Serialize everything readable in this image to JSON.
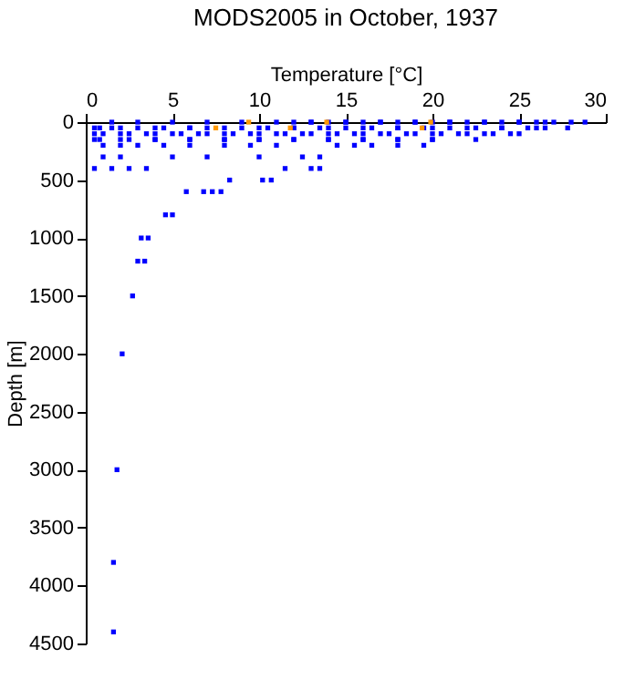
{
  "chart_data": {
    "type": "scatter",
    "title": "MODS2005 in October, 1937",
    "xlabel": "Temperature [°C]",
    "ylabel": "Depth [m]",
    "xlim": [
      0,
      30
    ],
    "xticks": [
      0,
      5,
      10,
      15,
      20,
      25,
      30
    ],
    "ylim": [
      4500,
      0
    ],
    "yticks": [
      0,
      500,
      1000,
      1500,
      2000,
      2500,
      3000,
      3500,
      4000,
      4500
    ],
    "grid": false,
    "marker": "square",
    "series": [
      {
        "color": "#0000ff",
        "x": [
          12,
          13,
          14,
          15,
          16,
          17,
          18,
          19,
          20,
          21,
          22,
          23,
          24,
          25,
          26,
          27,
          28,
          28.8,
          1.5,
          3,
          5,
          7,
          9,
          11,
          13,
          15,
          17,
          19,
          21,
          23,
          25,
          26.5,
          0.8,
          2,
          4,
          6,
          8,
          10,
          12,
          14,
          16,
          18,
          20,
          22,
          24,
          26,
          27.8,
          0.5,
          1.5,
          3,
          4.5,
          6,
          7.0,
          9,
          10.5,
          12,
          13.5,
          15,
          16.5,
          18,
          19.5,
          21,
          22.5,
          24,
          25.5,
          26.5,
          1,
          2.5,
          4,
          5.5,
          7,
          8.5,
          10,
          11.5,
          13,
          14.5,
          16,
          17.5,
          19,
          20.5,
          22,
          23.5,
          25,
          0.5,
          2,
          3.5,
          5,
          6.5,
          8,
          9.5,
          11,
          12.5,
          14,
          15.5,
          17,
          18.5,
          20,
          21.5,
          23,
          24.5,
          0.8,
          2.5,
          4,
          6,
          8,
          10,
          12,
          14,
          16,
          18,
          20,
          22.5,
          0.5,
          2,
          4,
          6,
          8,
          10,
          12,
          14,
          16,
          18,
          20,
          1,
          2,
          3,
          4.5,
          6,
          8,
          9.5,
          11,
          14.5,
          15.5,
          16.5,
          18,
          19.5,
          1,
          2,
          5,
          7,
          10,
          12.5,
          13.5,
          0.5,
          1.5,
          2.5,
          3.5,
          11.5,
          13,
          13.5,
          8.3,
          10.2,
          10.7,
          5.8,
          6.8,
          7.3,
          7.8,
          4.6,
          5,
          3.2,
          3.6,
          3.0,
          3.4,
          2.7,
          2.1,
          1.8,
          1.6,
          1.6
        ],
        "values": [
          0,
          0,
          0,
          0,
          0,
          0,
          0,
          0,
          0,
          0,
          0,
          0,
          0,
          0,
          0,
          0,
          0,
          0,
          0,
          0,
          0,
          0,
          0,
          0,
          0,
          0,
          0,
          0,
          0,
          0,
          0,
          0,
          50,
          50,
          50,
          50,
          50,
          50,
          50,
          50,
          50,
          50,
          50,
          50,
          50,
          50,
          50,
          50,
          50,
          50,
          50,
          50,
          50,
          50,
          50,
          50,
          50,
          50,
          50,
          50,
          50,
          50,
          50,
          50,
          50,
          50,
          100,
          100,
          100,
          100,
          100,
          100,
          100,
          100,
          100,
          100,
          100,
          100,
          100,
          100,
          100,
          100,
          100,
          100,
          100,
          100,
          100,
          100,
          100,
          100,
          100,
          100,
          100,
          100,
          100,
          100,
          100,
          100,
          100,
          100,
          150,
          150,
          150,
          150,
          150,
          150,
          150,
          150,
          150,
          150,
          150,
          150,
          150,
          150,
          150,
          150,
          150,
          150,
          150,
          150,
          150,
          150,
          150,
          200,
          200,
          200,
          200,
          200,
          200,
          200,
          200,
          200,
          200,
          200,
          200,
          200,
          300,
          300,
          300,
          300,
          300,
          300,
          300,
          400,
          400,
          400,
          400,
          400,
          400,
          400,
          500,
          500,
          500,
          600,
          600,
          600,
          600,
          800,
          800,
          1000,
          1000,
          1200,
          1200,
          1500,
          2000,
          3000,
          3800,
          4400
        ]
      },
      {
        "color": "#ff9900",
        "x": [
          7.5,
          9.4,
          11.8,
          13.9,
          19.9,
          19.4
        ],
        "values": [
          50,
          0,
          50,
          0,
          0,
          50
        ]
      }
    ]
  }
}
